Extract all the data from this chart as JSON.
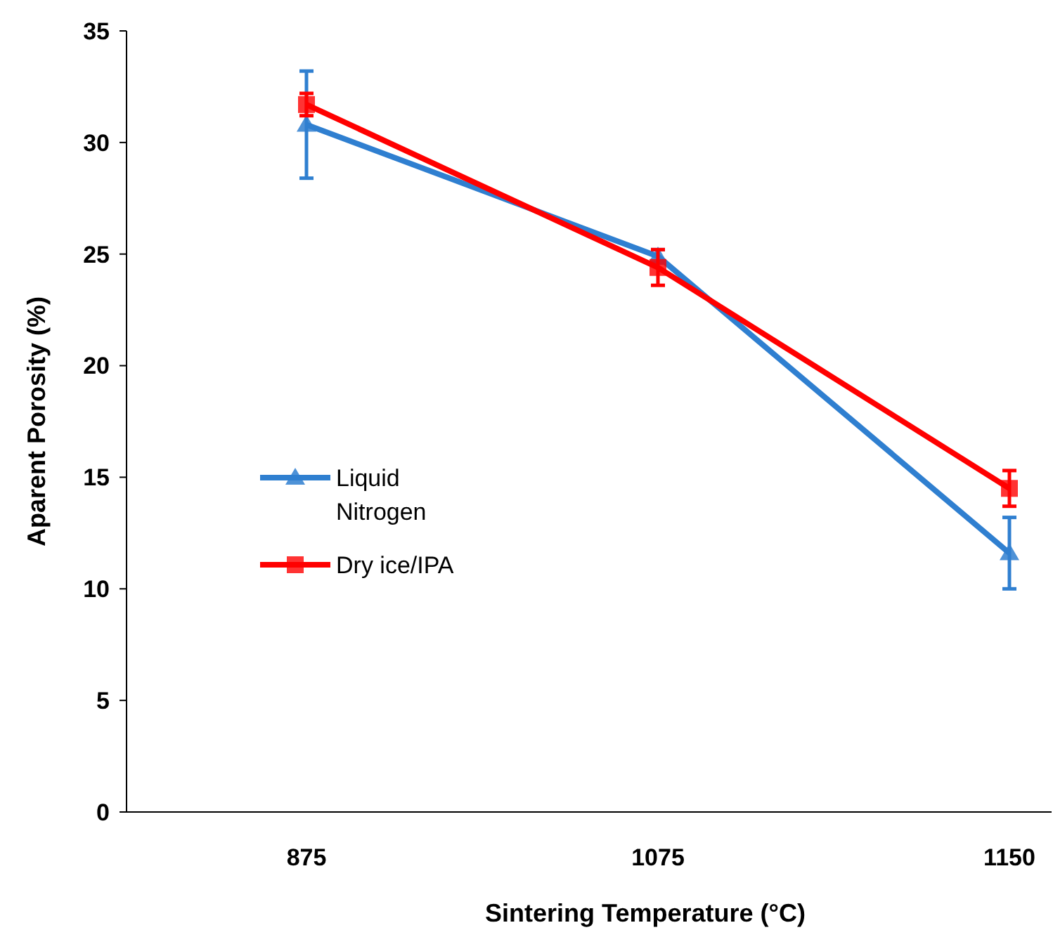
{
  "chart_data": {
    "type": "line",
    "xlabel": "Sintering Temperature  (°C)",
    "ylabel": "Aparent Porosity (%)",
    "categories": [
      "875",
      "1075",
      "1150"
    ],
    "series": [
      {
        "name": "Liquid Nitrogen",
        "color": "#2f7fd0",
        "values": [
          30.8,
          24.9,
          11.6
        ],
        "errors": [
          2.4,
          0.3,
          1.6
        ],
        "marker": "triangle"
      },
      {
        "name": "Dry ice/IPA",
        "color": "#ff0000",
        "values": [
          31.7,
          24.4,
          14.5
        ],
        "errors": [
          0.5,
          0.8,
          0.8
        ],
        "marker": "square"
      }
    ],
    "ylim": [
      0,
      35
    ],
    "yticks": [
      0,
      5,
      10,
      15,
      20,
      25,
      30,
      35
    ],
    "grid": false,
    "legend": "left"
  }
}
